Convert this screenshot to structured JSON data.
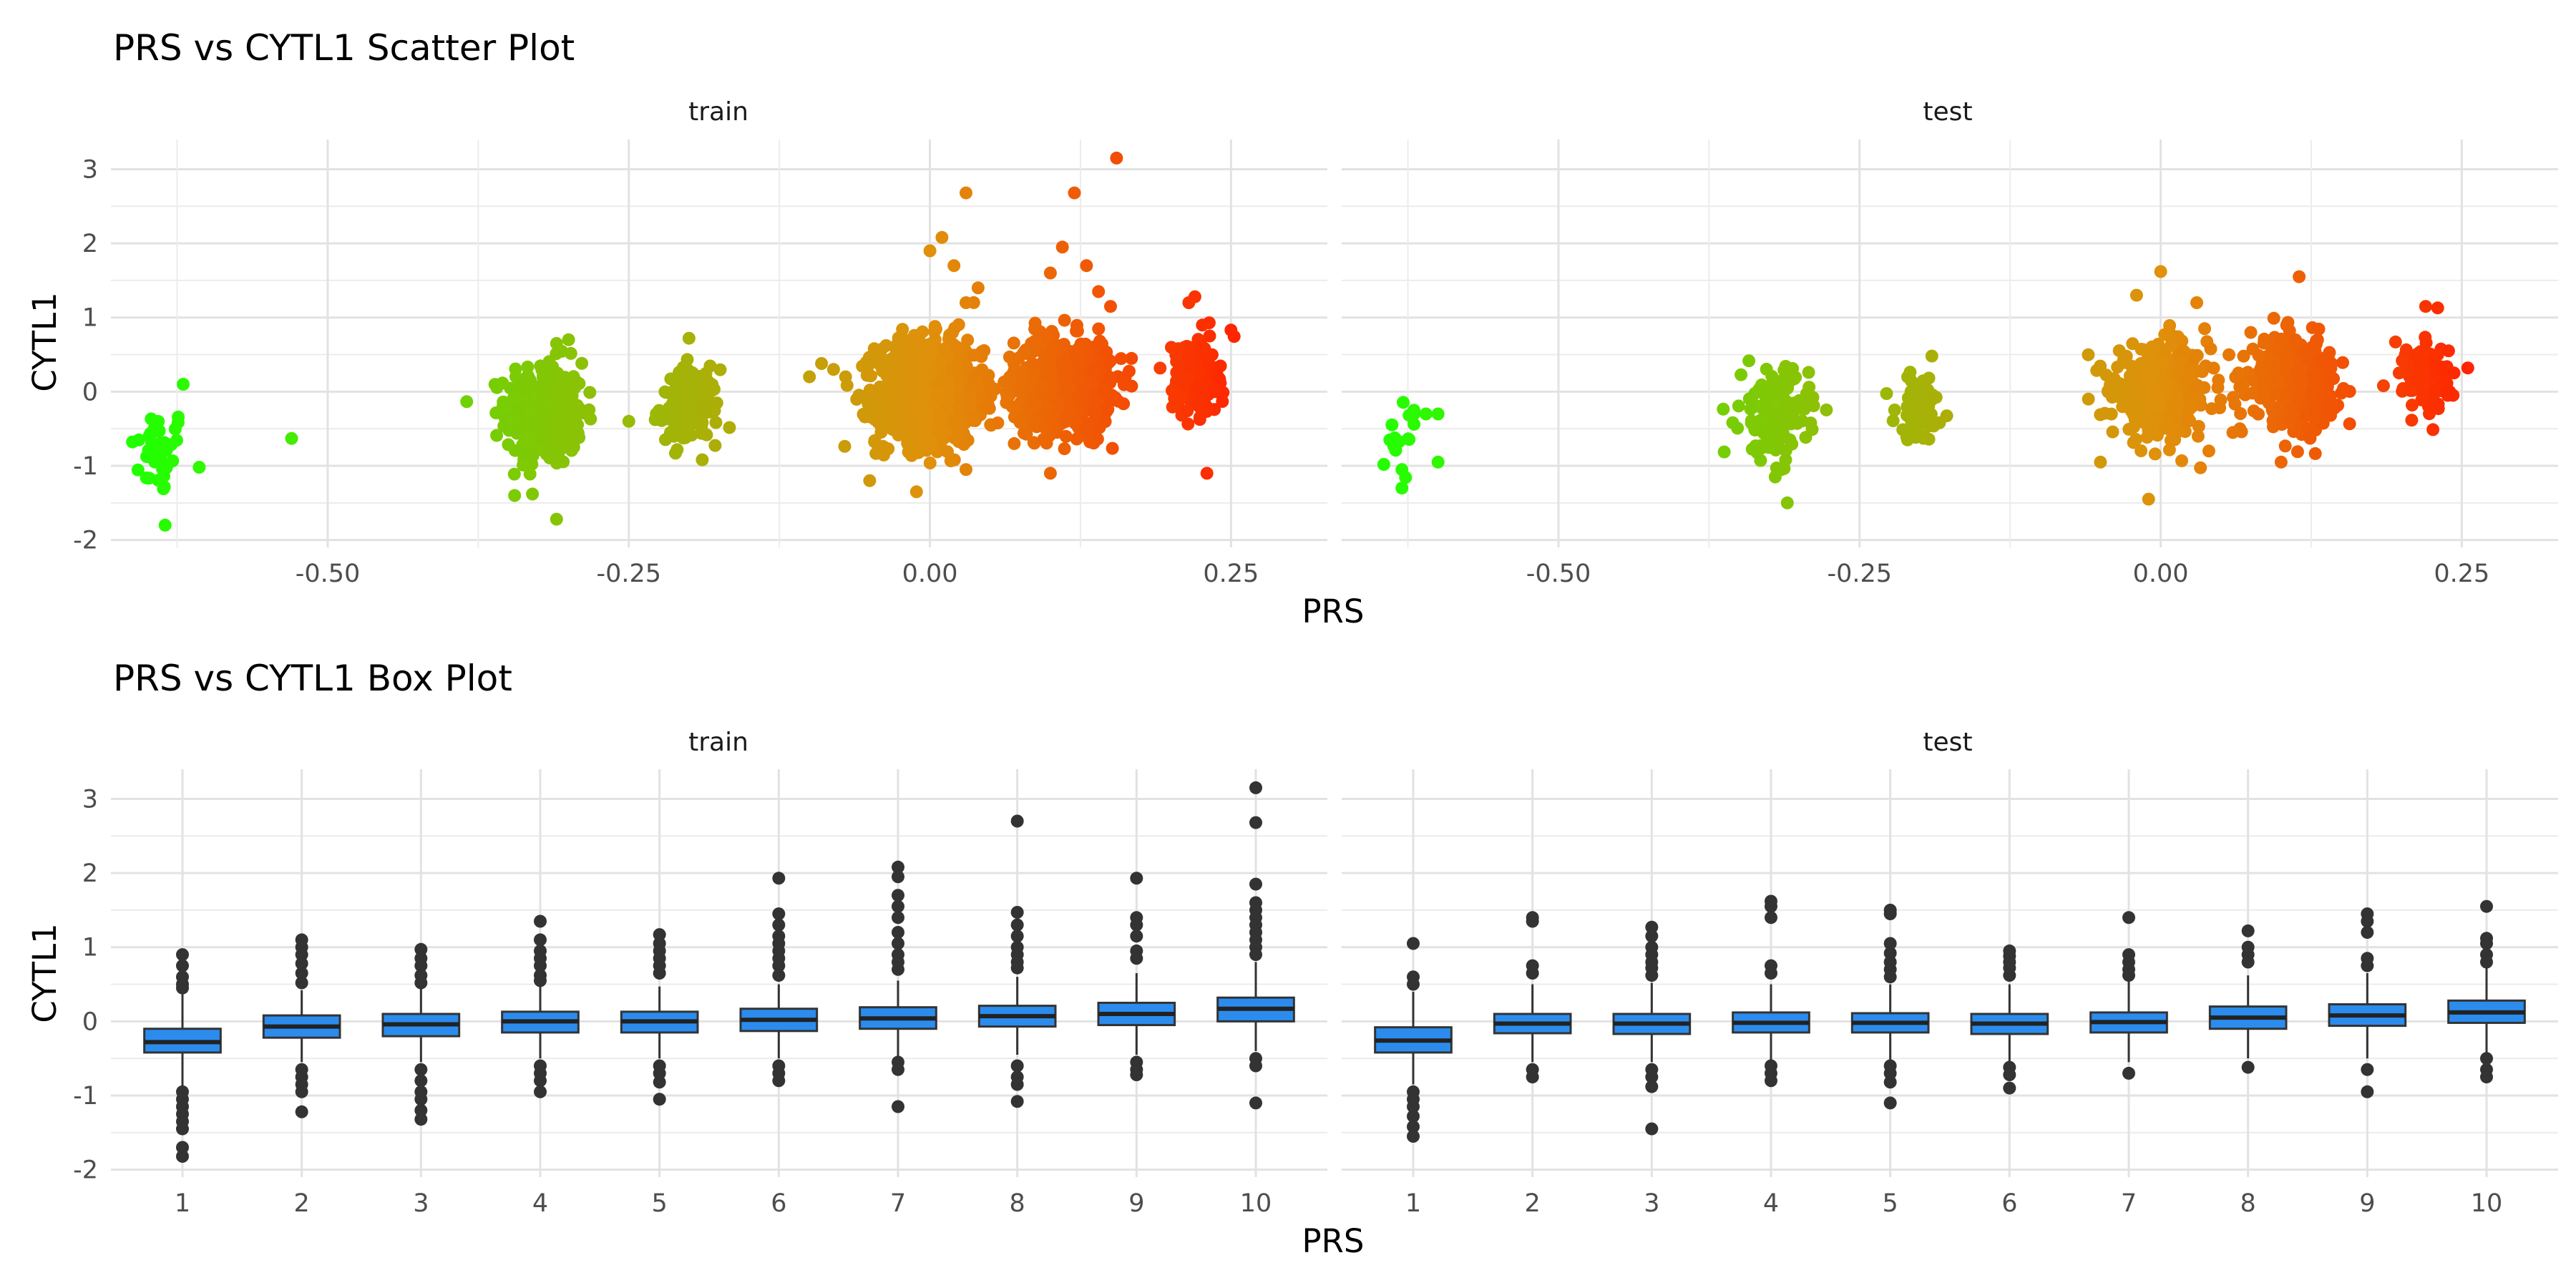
{
  "chart_data": [
    {
      "type": "scatter",
      "title": "PRS vs CYTL1 Scatter Plot",
      "xlabel": "PRS",
      "ylabel": "CYTL1",
      "facets": [
        "train",
        "test"
      ],
      "xlim": [
        -0.68,
        0.33
      ],
      "ylim": [
        -2.1,
        3.4
      ],
      "xticks": [
        -0.5,
        -0.25,
        0.0,
        0.25
      ],
      "xtick_labels": [
        "-0.50",
        "-0.25",
        "0.00",
        "0.25"
      ],
      "yticks": [
        -2,
        -1,
        0,
        1,
        2,
        3
      ],
      "ytick_labels": [
        "-2",
        "-1",
        "0",
        "1",
        "2",
        "3"
      ],
      "color_scale": {
        "low": "#22ff00",
        "mid": "#e0900a",
        "high": "#ff2200"
      },
      "clusters": {
        "train": [
          {
            "x": -0.64,
            "y_mean": -0.8,
            "y_sd": 0.3,
            "n": 40,
            "spread": 0.012
          },
          {
            "x": -0.32,
            "y_mean": -0.3,
            "y_sd": 0.35,
            "n": 320,
            "spread": 0.016
          },
          {
            "x": -0.2,
            "y_mean": -0.2,
            "y_sd": 0.25,
            "n": 150,
            "spread": 0.012
          },
          {
            "x": 0.0,
            "y_mean": 0.0,
            "y_sd": 0.35,
            "n": 900,
            "spread": 0.022
          },
          {
            "x": 0.11,
            "y_mean": 0.1,
            "y_sd": 0.3,
            "n": 800,
            "spread": 0.02
          },
          {
            "x": 0.22,
            "y_mean": 0.2,
            "y_sd": 0.25,
            "n": 220,
            "spread": 0.009
          }
        ],
        "test": [
          {
            "x": -0.63,
            "y_mean": -0.7,
            "y_sd": 0.3,
            "n": 12,
            "spread": 0.008
          },
          {
            "x": -0.32,
            "y_mean": -0.3,
            "y_sd": 0.3,
            "n": 150,
            "spread": 0.014
          },
          {
            "x": -0.2,
            "y_mean": -0.2,
            "y_sd": 0.22,
            "n": 70,
            "spread": 0.01
          },
          {
            "x": 0.0,
            "y_mean": 0.0,
            "y_sd": 0.3,
            "n": 420,
            "spread": 0.02
          },
          {
            "x": 0.11,
            "y_mean": 0.15,
            "y_sd": 0.28,
            "n": 380,
            "spread": 0.018
          },
          {
            "x": 0.22,
            "y_mean": 0.2,
            "y_sd": 0.22,
            "n": 110,
            "spread": 0.009
          }
        ]
      },
      "outliers": {
        "train": [
          [
            -0.53,
            -0.63
          ],
          [
            -0.62,
            0.1
          ],
          [
            -0.635,
            -1.8
          ],
          [
            -0.31,
            -1.72
          ],
          [
            -0.33,
            -1.38
          ],
          [
            -0.3,
            0.7
          ],
          [
            -0.31,
            0.65
          ],
          [
            -0.2,
            0.72
          ],
          [
            -0.25,
            -0.4
          ],
          [
            -0.09,
            0.38
          ],
          [
            -0.07,
            0.2
          ],
          [
            -0.1,
            0.2
          ],
          [
            -0.08,
            0.3
          ],
          [
            0.01,
            2.08
          ],
          [
            0.03,
            2.68
          ],
          [
            0.02,
            1.7
          ],
          [
            0.0,
            1.9
          ],
          [
            0.04,
            1.4
          ],
          [
            0.03,
            1.2
          ],
          [
            0.12,
            2.68
          ],
          [
            0.155,
            3.15
          ],
          [
            0.11,
            1.95
          ],
          [
            0.13,
            1.7
          ],
          [
            0.1,
            1.6
          ],
          [
            0.14,
            1.35
          ],
          [
            0.15,
            1.15
          ],
          [
            0.1,
            -1.1
          ],
          [
            0.07,
            -0.7
          ],
          [
            0.23,
            -1.1
          ],
          [
            0.25,
            0.83
          ],
          [
            0.22,
            1.28
          ],
          [
            0.215,
            1.2
          ],
          [
            -0.05,
            -1.2
          ]
        ],
        "test": [
          [
            -0.62,
            -0.3
          ],
          [
            -0.61,
            -0.3
          ],
          [
            -0.6,
            -0.3
          ],
          [
            -0.62,
            -0.25
          ],
          [
            -0.64,
            -0.65
          ],
          [
            -0.63,
            -1.3
          ],
          [
            -0.6,
            -0.95
          ],
          [
            -0.63,
            -1.05
          ],
          [
            -0.31,
            -1.5
          ],
          [
            -0.32,
            -1.15
          ],
          [
            -0.19,
            0.48
          ],
          [
            0.0,
            1.62
          ],
          [
            0.03,
            1.2
          ],
          [
            -0.05,
            -0.95
          ],
          [
            -0.06,
            -0.1
          ],
          [
            -0.01,
            -1.45
          ],
          [
            -0.02,
            1.3
          ],
          [
            0.04,
            -0.8
          ],
          [
            0.115,
            1.55
          ],
          [
            0.14,
            0.35
          ],
          [
            0.15,
            -0.02
          ],
          [
            0.1,
            -0.95
          ],
          [
            0.06,
            -0.55
          ],
          [
            0.24,
            0.0
          ],
          [
            0.255,
            0.32
          ],
          [
            0.195,
            0.67
          ],
          [
            0.185,
            0.08
          ],
          [
            0.22,
            1.15
          ],
          [
            0.23,
            1.13
          ]
        ]
      }
    },
    {
      "type": "box",
      "title": "PRS vs CYTL1 Box Plot",
      "xlabel": "PRS",
      "ylabel": "CYTL1",
      "facets": [
        "train",
        "test"
      ],
      "categories": [
        "1",
        "2",
        "3",
        "4",
        "5",
        "6",
        "7",
        "8",
        "9",
        "10"
      ],
      "ylim": [
        -2.1,
        3.4
      ],
      "yticks": [
        -2,
        -1,
        0,
        1,
        2,
        3
      ],
      "ytick_labels": [
        "-2",
        "-1",
        "0",
        "1",
        "2",
        "3"
      ],
      "fill_color": "#2b8cee",
      "boxes": {
        "train": [
          {
            "q1": -0.42,
            "med": -0.28,
            "q3": -0.1,
            "wlo": -0.9,
            "whi": 0.38,
            "out": [
              0.9,
              0.75,
              0.6,
              0.5,
              0.45,
              -0.95,
              -1.05,
              -1.15,
              -1.25,
              -1.35,
              -1.45,
              -1.7,
              -1.82
            ]
          },
          {
            "q1": -0.22,
            "med": -0.07,
            "q3": 0.08,
            "wlo": -0.55,
            "whi": 0.42,
            "out": [
              1.1,
              1.0,
              0.9,
              0.78,
              0.65,
              0.52,
              -0.65,
              -0.75,
              -0.85,
              -0.95,
              -1.22
            ]
          },
          {
            "q1": -0.2,
            "med": -0.04,
            "q3": 0.1,
            "wlo": -0.55,
            "whi": 0.45,
            "out": [
              0.97,
              0.85,
              0.75,
              0.62,
              0.52,
              -0.65,
              -0.8,
              -0.95,
              -1.05,
              -1.2,
              -1.32
            ]
          },
          {
            "q1": -0.15,
            "med": 0.0,
            "q3": 0.13,
            "wlo": -0.5,
            "whi": 0.47,
            "out": [
              1.35,
              1.1,
              0.95,
              0.85,
              0.75,
              0.62,
              0.55,
              -0.6,
              -0.7,
              -0.8,
              -0.95
            ]
          },
          {
            "q1": -0.15,
            "med": 0.0,
            "q3": 0.13,
            "wlo": -0.5,
            "whi": 0.47,
            "out": [
              1.17,
              1.05,
              0.95,
              0.85,
              0.75,
              0.65,
              -0.6,
              -0.7,
              -0.82,
              -1.05
            ]
          },
          {
            "q1": -0.13,
            "med": 0.02,
            "q3": 0.17,
            "wlo": -0.5,
            "whi": 0.5,
            "out": [
              1.93,
              1.45,
              1.3,
              1.15,
              1.05,
              0.95,
              0.85,
              0.75,
              0.62,
              -0.6,
              -0.7,
              -0.8
            ]
          },
          {
            "q1": -0.1,
            "med": 0.04,
            "q3": 0.19,
            "wlo": -0.5,
            "whi": 0.55,
            "out": [
              2.08,
              1.95,
              1.7,
              1.55,
              1.4,
              1.2,
              1.05,
              0.9,
              0.8,
              0.7,
              -0.55,
              -0.65,
              -1.15
            ]
          },
          {
            "q1": -0.07,
            "med": 0.07,
            "q3": 0.21,
            "wlo": -0.45,
            "whi": 0.6,
            "out": [
              2.7,
              1.47,
              1.3,
              1.15,
              1.0,
              0.9,
              0.8,
              0.72,
              -0.6,
              -0.75,
              -0.85,
              -1.08
            ]
          },
          {
            "q1": -0.05,
            "med": 0.1,
            "q3": 0.25,
            "wlo": -0.45,
            "whi": 0.65,
            "out": [
              1.93,
              1.4,
              1.3,
              1.15,
              0.95,
              0.85,
              -0.55,
              -0.65,
              -0.72
            ]
          },
          {
            "q1": 0.0,
            "med": 0.17,
            "q3": 0.32,
            "wlo": -0.4,
            "whi": 0.8,
            "out": [
              3.15,
              2.68,
              1.85,
              1.6,
              1.5,
              1.4,
              1.3,
              1.2,
              1.1,
              1.0,
              0.9,
              -0.5,
              -0.6,
              -1.1
            ]
          }
        ],
        "test": [
          {
            "q1": -0.42,
            "med": -0.26,
            "q3": -0.08,
            "wlo": -0.85,
            "whi": 0.4,
            "out": [
              1.05,
              0.6,
              0.5,
              -0.95,
              -1.05,
              -1.15,
              -1.28,
              -1.42,
              -1.55
            ]
          },
          {
            "q1": -0.16,
            "med": -0.03,
            "q3": 0.1,
            "wlo": -0.55,
            "whi": 0.5,
            "out": [
              1.4,
              1.35,
              0.75,
              0.65,
              -0.65,
              -0.75
            ]
          },
          {
            "q1": -0.17,
            "med": -0.03,
            "q3": 0.1,
            "wlo": -0.55,
            "whi": 0.52,
            "out": [
              1.27,
              1.15,
              1.0,
              0.9,
              0.8,
              0.72,
              0.62,
              -0.65,
              -0.75,
              -0.88,
              -1.45
            ]
          },
          {
            "q1": -0.15,
            "med": -0.02,
            "q3": 0.12,
            "wlo": -0.55,
            "whi": 0.5,
            "out": [
              1.62,
              1.55,
              1.4,
              0.75,
              0.65,
              -0.6,
              -0.7,
              -0.8
            ]
          },
          {
            "q1": -0.15,
            "med": -0.02,
            "q3": 0.11,
            "wlo": -0.55,
            "whi": 0.5,
            "out": [
              1.5,
              1.45,
              1.05,
              0.92,
              0.8,
              0.7,
              0.6,
              -0.6,
              -0.7,
              -0.82,
              -1.1
            ]
          },
          {
            "q1": -0.17,
            "med": -0.03,
            "q3": 0.1,
            "wlo": -0.55,
            "whi": 0.5,
            "out": [
              0.95,
              0.88,
              0.8,
              0.72,
              0.62,
              -0.62,
              -0.72,
              -0.9
            ]
          },
          {
            "q1": -0.15,
            "med": -0.01,
            "q3": 0.12,
            "wlo": -0.55,
            "whi": 0.55,
            "out": [
              1.4,
              0.9,
              0.8,
              0.7,
              0.62,
              -0.7
            ]
          },
          {
            "q1": -0.1,
            "med": 0.05,
            "q3": 0.2,
            "wlo": -0.5,
            "whi": 0.62,
            "out": [
              1.22,
              1.0,
              0.9,
              0.8,
              -0.62
            ]
          },
          {
            "q1": -0.06,
            "med": 0.08,
            "q3": 0.23,
            "wlo": -0.5,
            "whi": 0.65,
            "out": [
              1.45,
              1.35,
              1.2,
              0.85,
              0.75,
              -0.65,
              -0.95
            ]
          },
          {
            "q1": -0.02,
            "med": 0.12,
            "q3": 0.28,
            "wlo": -0.45,
            "whi": 0.72,
            "out": [
              1.55,
              1.12,
              1.05,
              0.9,
              0.8,
              -0.5,
              -0.65,
              -0.75
            ]
          }
        ]
      }
    }
  ]
}
